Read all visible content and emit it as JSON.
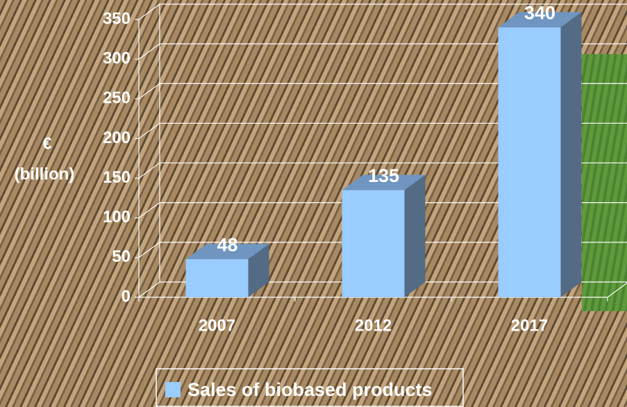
{
  "chart_data": {
    "type": "bar3d",
    "y_label": [
      "€",
      "(billion)"
    ],
    "categories": [
      "2007",
      "2012",
      "2017"
    ],
    "series": [
      {
        "name": "Sales of biobased products",
        "color": "#99ccff",
        "values": [
          48,
          135,
          340
        ]
      }
    ],
    "ylim": [
      0,
      350
    ],
    "yticks": [
      0,
      50,
      100,
      150,
      200,
      250,
      300,
      350
    ],
    "grid": true
  }
}
